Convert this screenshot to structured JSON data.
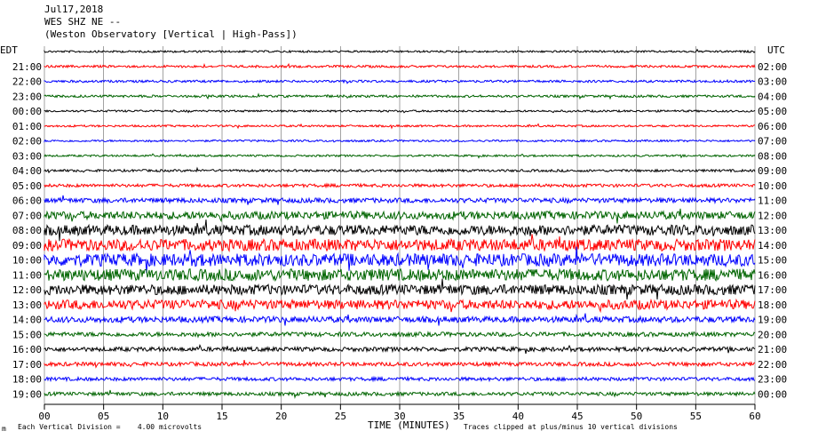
{
  "header": {
    "date": "Jul17,2018",
    "station": "WES SHZ NE --",
    "source": "(Weston Observatory [Vertical | High-Pass])"
  },
  "left_axis_title": "EDT",
  "right_axis_title": "UTC",
  "footer": {
    "corner_mark": "m",
    "scale_note": "Each Vertical Division =    4.00 microvolts",
    "clip_note": "Traces clipped at plus/minus 10 vertical divisions"
  },
  "chart_data": {
    "type": "line",
    "title": "",
    "xlabel": "TIME (MINUTES)",
    "xlim": [
      0,
      60
    ],
    "x_ticks": [
      0,
      5,
      10,
      15,
      20,
      25,
      30,
      35,
      40,
      45,
      50,
      55,
      60
    ],
    "x_tick_labels": [
      "00",
      "05",
      "10",
      "15",
      "20",
      "25",
      "30",
      "35",
      "40",
      "45",
      "50",
      "55",
      "60"
    ],
    "grid": "vertical",
    "trace_colors": [
      "#000000",
      "#ff0000",
      "#0000ff",
      "#006400"
    ],
    "rows": [
      {
        "edt": "",
        "utc": "",
        "level": 0.5
      },
      {
        "edt": "21:00",
        "utc": "02:00",
        "level": 0.6
      },
      {
        "edt": "22:00",
        "utc": "03:00",
        "level": 0.6
      },
      {
        "edt": "23:00",
        "utc": "04:00",
        "level": 0.6
      },
      {
        "edt": "00:00",
        "utc": "05:00",
        "level": 0.5
      },
      {
        "edt": "01:00",
        "utc": "06:00",
        "level": 0.5
      },
      {
        "edt": "02:00",
        "utc": "07:00",
        "level": 0.5
      },
      {
        "edt": "03:00",
        "utc": "08:00",
        "level": 0.5
      },
      {
        "edt": "04:00",
        "utc": "09:00",
        "level": 0.6
      },
      {
        "edt": "05:00",
        "utc": "10:00",
        "level": 0.8
      },
      {
        "edt": "06:00",
        "utc": "11:00",
        "level": 1.2
      },
      {
        "edt": "07:00",
        "utc": "12:00",
        "level": 2.0
      },
      {
        "edt": "08:00",
        "utc": "13:00",
        "level": 2.6
      },
      {
        "edt": "09:00",
        "utc": "14:00",
        "level": 3.0
      },
      {
        "edt": "10:00",
        "utc": "15:00",
        "level": 3.2
      },
      {
        "edt": "11:00",
        "utc": "16:00",
        "level": 3.0
      },
      {
        "edt": "12:00",
        "utc": "17:00",
        "level": 2.6
      },
      {
        "edt": "13:00",
        "utc": "18:00",
        "level": 2.4
      },
      {
        "edt": "14:00",
        "utc": "19:00",
        "level": 1.5
      },
      {
        "edt": "15:00",
        "utc": "20:00",
        "level": 1.1
      },
      {
        "edt": "16:00",
        "utc": "21:00",
        "level": 1.1
      },
      {
        "edt": "17:00",
        "utc": "22:00",
        "level": 1.0
      },
      {
        "edt": "18:00",
        "utc": "23:00",
        "level": 0.9
      },
      {
        "edt": "19:00",
        "utc": "00:00",
        "level": 0.9
      }
    ]
  }
}
